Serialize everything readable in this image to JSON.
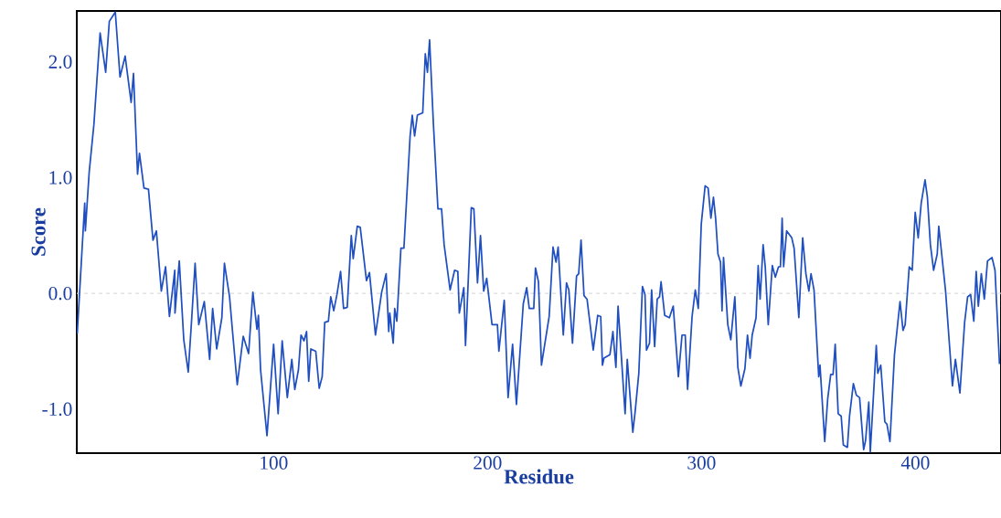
{
  "chart_data": {
    "type": "line",
    "xlabel": "Residue",
    "ylabel": "Score",
    "color": "#1f4fc0",
    "xlim": [
      8,
      440
    ],
    "ylim": [
      -1.38,
      2.44
    ],
    "xticks": [
      100,
      200,
      300,
      400
    ],
    "yticks": [
      {
        "value": -1,
        "label": "-1.0"
      },
      {
        "value": 0,
        "label": "0.0"
      },
      {
        "value": 1,
        "label": "1.0"
      },
      {
        "value": 2,
        "label": "2.0"
      }
    ],
    "ref_lines": [
      {
        "axis": "y",
        "value": 0,
        "color": "#dcdcdc",
        "line_style": "dashed"
      }
    ],
    "x": [
      8.2,
      11.7,
      12.0,
      13.8,
      16.0,
      18.9,
      21.5,
      23.2,
      26.0,
      28.2,
      30.6,
      33.4,
      34.5,
      36.4,
      37.3,
      39.4,
      41.5,
      43.6,
      45.2,
      47.5,
      49.5,
      51.3,
      53.8,
      53.9,
      55.9,
      58.0,
      60.1,
      61.6,
      63.3,
      65.0,
      67.6,
      70.1,
      71.5,
      73.4,
      75.8,
      77.0,
      79.4,
      80.8,
      83.0,
      85.8,
      88.3,
      90.3,
      92.2,
      92.9,
      93.9,
      96.9,
      100.0,
      102.1,
      104.0,
      106.4,
      108.5,
      109.9,
      111.6,
      112.8,
      114.2,
      115.4,
      116.4,
      117.4,
      119.7,
      121.3,
      122.7,
      123.9,
      125.6,
      126.7,
      128.1,
      129.6,
      131.3,
      132.7,
      134.4,
      136.3,
      137.2,
      139.1,
      140.5,
      143.4,
      144.8,
      147.6,
      150.5,
      152.6,
      153.8,
      154.3,
      155.9,
      156.6,
      157.6,
      159.5,
      160.9,
      163.8,
      164.8,
      165.9,
      167.2,
      169.7,
      170.9,
      171.9,
      172.9,
      174.7,
      176.8,
      178.5,
      179.7,
      182.5,
      184.6,
      186.1,
      186.8,
      188.9,
      189.7,
      192.4,
      193.6,
      195.3,
      196.7,
      198.2,
      199.6,
      202.1,
      204.6,
      205.3,
      207.8,
      209.6,
      211.7,
      213.5,
      216.7,
      218.3,
      219.5,
      221.6,
      222.4,
      223.8,
      225.2,
      228.8,
      230.6,
      232.0,
      233.0,
      235.4,
      236.9,
      238.0,
      239.7,
      241.6,
      242.6,
      243.7,
      245.1,
      246.5,
      249.4,
      251.5,
      252.9,
      253.7,
      254.4,
      257.2,
      258.6,
      260.0,
      261.0,
      264.3,
      265.3,
      267.9,
      269.0,
      270.7,
      272.4,
      273.6,
      274.3,
      275.7,
      276.7,
      278.1,
      279.3,
      280.4,
      281.1,
      282.8,
      285.0,
      286.8,
      289.2,
      290.9,
      292.4,
      293.5,
      295.6,
      297.1,
      298.5,
      299.9,
      301.7,
      303.1,
      304.4,
      305.6,
      306.6,
      307.7,
      308.9,
      309.6,
      310.3,
      312.3,
      313.7,
      315.6,
      317.0,
      318.4,
      320.3,
      321.5,
      322.7,
      323.7,
      325.5,
      326.5,
      327.4,
      328.8,
      329.8,
      331.2,
      333.1,
      334.5,
      336.0,
      336.9,
      337.7,
      338.4,
      339.8,
      342.2,
      343.3,
      345.5,
      347.3,
      348.8,
      350.2,
      351.2,
      352.6,
      354.8,
      355.4,
      357.6,
      359.0,
      360.4,
      361.5,
      362.5,
      363.9,
      365.3,
      366.3,
      368.2,
      369.2,
      371.0,
      372.4,
      373.9,
      375.8,
      376.7,
      378.2,
      378.9,
      381.7,
      382.4,
      383.8,
      385.7,
      386.7,
      388.1,
      390.2,
      392.8,
      394.2,
      395.2,
      397.1,
      398.5,
      399.9,
      401.3,
      402.7,
      404.5,
      405.6,
      407.0,
      408.5,
      410.2,
      410.9,
      412.0,
      414.1,
      417.3,
      418.7,
      420.8,
      423.0,
      424.4,
      425.8,
      427.3,
      428.4,
      429.4,
      430.8,
      432.2,
      433.7,
      435.8,
      437.2,
      439.3
    ],
    "values": [
      -0.35,
      0.78,
      0.54,
      1.05,
      1.46,
      2.25,
      1.91,
      2.35,
      2.43,
      1.87,
      2.05,
      1.65,
      1.9,
      1.03,
      1.21,
      0.91,
      0.9,
      0.46,
      0.54,
      0.02,
      0.23,
      -0.2,
      0.2,
      -0.17,
      0.28,
      -0.4,
      -0.68,
      -0.25,
      0.26,
      -0.27,
      -0.07,
      -0.57,
      -0.13,
      -0.48,
      -0.21,
      0.26,
      -0.03,
      -0.33,
      -0.79,
      -0.37,
      -0.52,
      0.01,
      -0.31,
      -0.19,
      -0.66,
      -1.23,
      -0.44,
      -1.04,
      -0.41,
      -0.9,
      -0.57,
      -0.83,
      -0.66,
      -0.36,
      -0.41,
      -0.33,
      -0.76,
      -0.48,
      -0.5,
      -0.82,
      -0.72,
      -0.25,
      -0.24,
      -0.03,
      -0.15,
      -0.01,
      0.19,
      -0.13,
      -0.12,
      0.5,
      0.3,
      0.58,
      0.57,
      0.11,
      0.18,
      -0.36,
      0.01,
      0.17,
      -0.33,
      -0.17,
      -0.43,
      -0.13,
      -0.24,
      0.39,
      0.39,
      1.36,
      1.54,
      1.36,
      1.54,
      1.56,
      2.07,
      1.91,
      2.19,
      1.46,
      0.73,
      0.73,
      0.42,
      0.03,
      0.2,
      0.19,
      -0.17,
      0.05,
      -0.45,
      0.74,
      0.73,
      0.09,
      0.5,
      0.02,
      0.13,
      -0.27,
      -0.27,
      -0.5,
      -0.06,
      -0.9,
      -0.44,
      -0.96,
      -0.09,
      0.05,
      -0.13,
      -0.13,
      0.22,
      0.1,
      -0.62,
      -0.2,
      0.4,
      0.27,
      0.4,
      -0.36,
      0.09,
      0.03,
      -0.43,
      0.15,
      0.17,
      0.46,
      -0.02,
      -0.05,
      -0.49,
      -0.19,
      -0.2,
      -0.62,
      -0.56,
      -0.53,
      -0.33,
      -0.64,
      -0.11,
      -1.04,
      -0.57,
      -1.2,
      -1.02,
      -0.69,
      0.06,
      -0.01,
      -0.49,
      -0.43,
      0.03,
      -0.46,
      -0.05,
      -0.03,
      0.1,
      -0.19,
      -0.21,
      -0.11,
      -0.72,
      -0.36,
      -0.36,
      -0.83,
      -0.2,
      0.03,
      -0.13,
      0.6,
      0.93,
      0.91,
      0.65,
      0.83,
      0.65,
      0.34,
      0.27,
      -0.15,
      0.31,
      -0.27,
      -0.4,
      -0.03,
      -0.64,
      -0.8,
      -0.65,
      -0.36,
      -0.56,
      -0.36,
      -0.21,
      0.24,
      -0.05,
      0.42,
      0.23,
      -0.27,
      0.24,
      0.14,
      0.23,
      0.23,
      0.65,
      0.23,
      0.54,
      0.48,
      0.39,
      -0.21,
      0.48,
      0.17,
      0.02,
      0.17,
      0.03,
      -0.72,
      -0.62,
      -1.28,
      -0.91,
      -0.7,
      -0.7,
      -0.44,
      -1.04,
      -1.06,
      -1.31,
      -1.33,
      -1.06,
      -0.78,
      -0.88,
      -0.9,
      -1.35,
      -1.27,
      -0.94,
      -1.37,
      -0.45,
      -0.69,
      -0.62,
      -1.11,
      -1.13,
      -1.28,
      -0.53,
      -0.07,
      -0.32,
      -0.27,
      0.23,
      0.2,
      0.7,
      0.48,
      0.78,
      0.98,
      0.83,
      0.42,
      0.2,
      0.34,
      0.58,
      0.39,
      0.02,
      -0.8,
      -0.57,
      -0.86,
      -0.25,
      -0.03,
      -0.01,
      -0.24,
      0.19,
      -0.11,
      0.17,
      -0.05,
      0.28,
      0.31,
      0.2,
      -0.61
    ]
  }
}
